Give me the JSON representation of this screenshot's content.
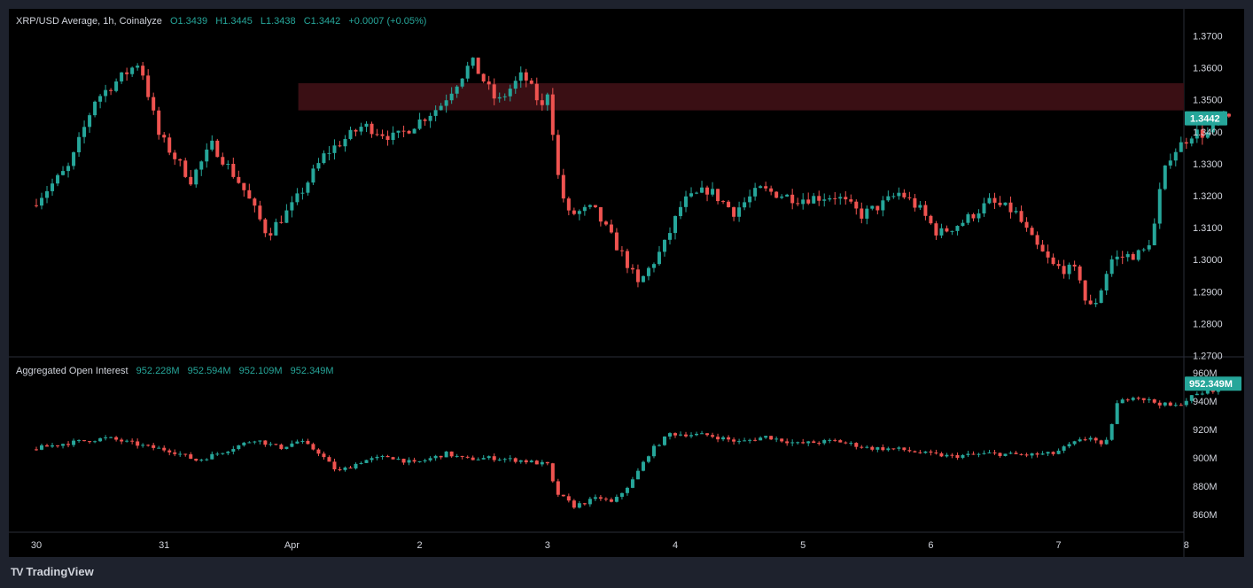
{
  "price_legend": {
    "title": "XRP/USD Average, 1h, Coinalyze",
    "open": "O1.3439",
    "high": "H1.3445",
    "low": "L1.3438",
    "close": "C1.3442",
    "change": "+0.0007 (+0.05%)"
  },
  "oi_legend": {
    "title": "Aggregated Open Interest",
    "v1": "952.228M",
    "v2": "952.594M",
    "v3": "952.109M",
    "v4": "952.349M"
  },
  "brand": {
    "logo": "TV",
    "name": "TradingView"
  },
  "colors": {
    "up": "#26a69a",
    "down": "#ef5350",
    "zone": "#3a0f14",
    "grid": "#2a2e39",
    "text": "#d1d4dc"
  },
  "chart_data": [
    {
      "type": "candlestick",
      "title": "XRP/USD Average, 1h, Coinalyze",
      "timeframe": "1h",
      "x_tick_labels": [
        "30",
        "31",
        "Apr",
        "2",
        "3",
        "4",
        "5",
        "6",
        "7",
        "8"
      ],
      "y_tick_labels": [
        "1.3700",
        "1.3600",
        "1.3500",
        "1.3400",
        "1.3300",
        "1.3200",
        "1.3100",
        "1.3000",
        "1.2900",
        "1.2800",
        "1.2700"
      ],
      "ylim": [
        1.27,
        1.3775
      ],
      "last_price_label": "1.3442",
      "resistance_zone": {
        "from": 1.3467,
        "to": 1.3552,
        "start_day": 2.05,
        "end_day": 8
      },
      "key_points": [
        {
          "day": 0.0,
          "price": 1.317
        },
        {
          "day": 0.3,
          "price": 1.329
        },
        {
          "day": 0.5,
          "price": 1.35
        },
        {
          "day": 0.85,
          "price": 1.362
        },
        {
          "day": 1.0,
          "price": 1.339
        },
        {
          "day": 1.25,
          "price": 1.325
        },
        {
          "day": 1.42,
          "price": 1.336
        },
        {
          "day": 1.65,
          "price": 1.323
        },
        {
          "day": 1.85,
          "price": 1.308
        },
        {
          "day": 2.05,
          "price": 1.317
        },
        {
          "day": 2.3,
          "price": 1.333
        },
        {
          "day": 2.6,
          "price": 1.342
        },
        {
          "day": 2.85,
          "price": 1.338
        },
        {
          "day": 3.2,
          "price": 1.348
        },
        {
          "day": 3.45,
          "price": 1.362
        },
        {
          "day": 3.65,
          "price": 1.349
        },
        {
          "day": 3.85,
          "price": 1.358
        },
        {
          "day": 4.0,
          "price": 1.3475
        },
        {
          "day": 4.06,
          "price": 1.355
        },
        {
          "day": 4.1,
          "price": 1.33
        },
        {
          "day": 4.2,
          "price": 1.314
        },
        {
          "day": 4.4,
          "price": 1.316
        },
        {
          "day": 4.65,
          "price": 1.3
        },
        {
          "day": 4.75,
          "price": 1.292
        },
        {
          "day": 4.95,
          "price": 1.304
        },
        {
          "day": 5.1,
          "price": 1.318
        },
        {
          "day": 5.3,
          "price": 1.322
        },
        {
          "day": 5.5,
          "price": 1.315
        },
        {
          "day": 5.7,
          "price": 1.322
        },
        {
          "day": 6.0,
          "price": 1.319
        },
        {
          "day": 6.3,
          "price": 1.32
        },
        {
          "day": 6.5,
          "price": 1.314
        },
        {
          "day": 6.65,
          "price": 1.317
        },
        {
          "day": 6.8,
          "price": 1.321
        },
        {
          "day": 6.95,
          "price": 1.316
        },
        {
          "day": 7.1,
          "price": 1.308
        },
        {
          "day": 7.3,
          "price": 1.312
        },
        {
          "day": 7.5,
          "price": 1.318
        },
        {
          "day": 7.7,
          "price": 1.315
        },
        {
          "day": 7.85,
          "price": 1.305
        },
        {
          "day": 8.0,
          "price": 1.298
        },
        {
          "day": 8.2,
          "price": 1.296
        },
        {
          "day": 8.27,
          "price": 1.284
        },
        {
          "day": 8.35,
          "price": 1.288
        },
        {
          "day": 8.45,
          "price": 1.3
        },
        {
          "day": 8.55,
          "price": 1.301
        },
        {
          "day": 8.7,
          "price": 1.302
        },
        {
          "day": 8.78,
          "price": 1.308
        },
        {
          "day": 8.85,
          "price": 1.325
        },
        {
          "day": 8.92,
          "price": 1.333
        },
        {
          "day": 9.0,
          "price": 1.336
        },
        {
          "day": 9.1,
          "price": 1.34
        },
        {
          "day": 9.2,
          "price": 1.339
        },
        {
          "day": 9.28,
          "price": 1.343
        },
        {
          "day": 9.35,
          "price": 1.3442
        }
      ]
    },
    {
      "type": "candlestick",
      "title": "Aggregated Open Interest",
      "y_tick_labels": [
        "960M",
        "940M",
        "920M",
        "900M",
        "880M",
        "860M"
      ],
      "ylim": [
        850,
        962
      ],
      "last_value_label": "952.349M",
      "key_points": [
        {
          "day": 0.0,
          "value": 906
        },
        {
          "day": 0.25,
          "value": 910
        },
        {
          "day": 0.6,
          "value": 914
        },
        {
          "day": 0.9,
          "value": 908
        },
        {
          "day": 1.1,
          "value": 905
        },
        {
          "day": 1.3,
          "value": 898
        },
        {
          "day": 1.55,
          "value": 906
        },
        {
          "day": 1.75,
          "value": 913
        },
        {
          "day": 1.95,
          "value": 907
        },
        {
          "day": 2.1,
          "value": 912
        },
        {
          "day": 2.25,
          "value": 904
        },
        {
          "day": 2.4,
          "value": 890
        },
        {
          "day": 2.6,
          "value": 898
        },
        {
          "day": 2.8,
          "value": 901
        },
        {
          "day": 3.0,
          "value": 896
        },
        {
          "day": 3.25,
          "value": 903
        },
        {
          "day": 3.4,
          "value": 899
        },
        {
          "day": 3.6,
          "value": 900
        },
        {
          "day": 3.85,
          "value": 898
        },
        {
          "day": 4.05,
          "value": 895
        },
        {
          "day": 4.1,
          "value": 876
        },
        {
          "day": 4.25,
          "value": 866
        },
        {
          "day": 4.45,
          "value": 872
        },
        {
          "day": 4.55,
          "value": 868
        },
        {
          "day": 4.7,
          "value": 883
        },
        {
          "day": 4.85,
          "value": 905
        },
        {
          "day": 5.0,
          "value": 917
        },
        {
          "day": 5.3,
          "value": 916
        },
        {
          "day": 5.55,
          "value": 911
        },
        {
          "day": 5.75,
          "value": 915
        },
        {
          "day": 6.0,
          "value": 910
        },
        {
          "day": 6.3,
          "value": 912
        },
        {
          "day": 6.55,
          "value": 907
        },
        {
          "day": 6.8,
          "value": 906
        },
        {
          "day": 7.0,
          "value": 903
        },
        {
          "day": 7.2,
          "value": 901
        },
        {
          "day": 7.5,
          "value": 903
        },
        {
          "day": 7.8,
          "value": 902
        },
        {
          "day": 8.0,
          "value": 903
        },
        {
          "day": 8.15,
          "value": 910
        },
        {
          "day": 8.3,
          "value": 915
        },
        {
          "day": 8.4,
          "value": 906
        },
        {
          "day": 8.5,
          "value": 938
        },
        {
          "day": 8.62,
          "value": 944
        },
        {
          "day": 8.8,
          "value": 939
        },
        {
          "day": 8.95,
          "value": 936
        },
        {
          "day": 9.1,
          "value": 944
        },
        {
          "day": 9.25,
          "value": 948
        },
        {
          "day": 9.35,
          "value": 952.349
        }
      ]
    }
  ]
}
